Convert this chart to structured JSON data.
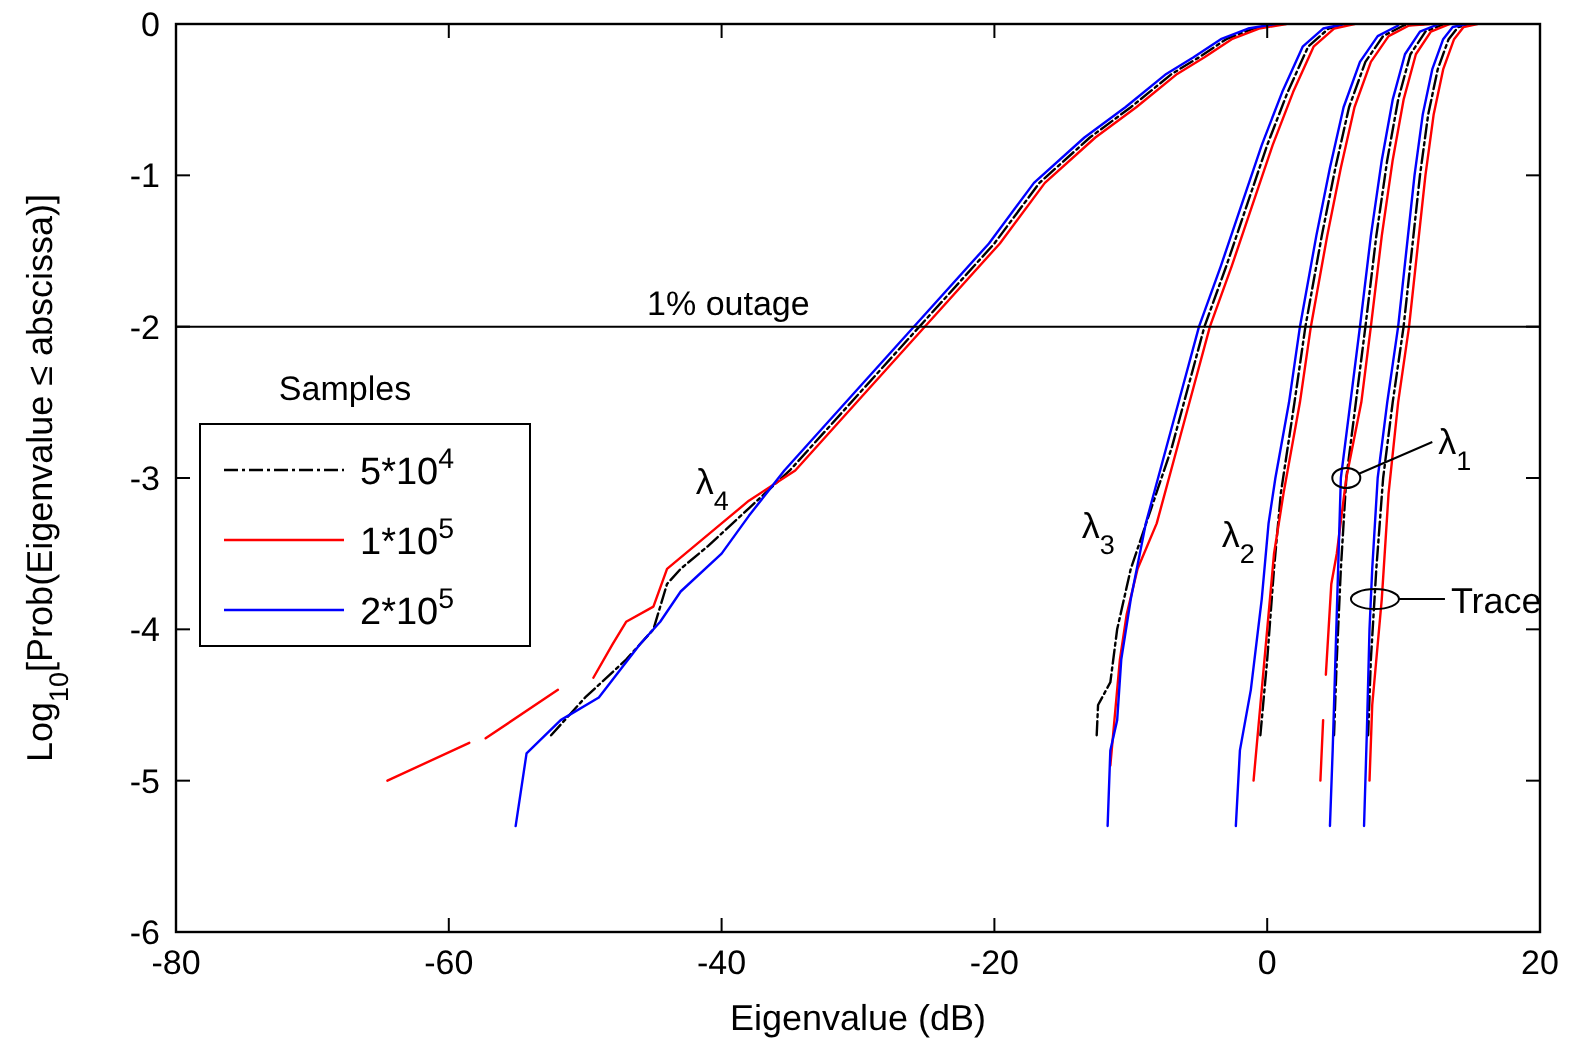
{
  "chart_data": {
    "type": "line",
    "xlabel": "Eigenvalue (dB)",
    "ylabel": "Log$_{10}$[Prob(Eigenvalue ≤ abscissa)]",
    "legend_title": "Samples",
    "legend": "left",
    "grid": false,
    "xlim": [
      -80,
      20
    ],
    "xticks": [
      -80,
      -60,
      -40,
      -20,
      0,
      20
    ],
    "ylim": [
      -6,
      0
    ],
    "yticks": [
      -6,
      -5,
      -4,
      -3,
      -2,
      -1,
      0
    ],
    "ref_lines": [
      {
        "axis": "y",
        "value": -2,
        "label": "1% outage",
        "color": "#000000"
      }
    ],
    "annotations": [
      {
        "text": "λ$_{4}$",
        "x": -38,
        "y": -3.2
      },
      {
        "text": "λ$_{3}$",
        "x": -9.7,
        "y": -3.49
      },
      {
        "text": "λ$_{2}$",
        "x": 0.55,
        "y": -3.55
      },
      {
        "text": "λ$_{1}$",
        "x": 5.8,
        "y": -3.0
      },
      {
        "text": "Trace",
        "x": 7.9,
        "y": -3.8
      }
    ],
    "series": [
      {
        "name": "5*10$^{4}$",
        "color": "#000000",
        "line_style": "dashed",
        "x": [
          -52.5,
          -50,
          -47,
          -45,
          -44,
          -43,
          -41,
          -38,
          -35,
          -30,
          -26,
          -20,
          -16.7,
          -13,
          -10,
          -7,
          -5,
          -3,
          -1,
          1
        ],
        "values": [
          -4.7,
          -4.45,
          -4.2,
          -4.0,
          -3.7,
          -3.6,
          -3.45,
          -3.2,
          -2.95,
          -2.45,
          -2.05,
          -1.45,
          -1.05,
          -0.75,
          -0.55,
          -0.33,
          -0.22,
          -0.1,
          -0.03,
          0
        ]
      },
      {
        "color": "#000000",
        "line_style": "dashed",
        "x": [
          -12.5,
          -12.4,
          -11.5,
          -11,
          -10,
          -8.5,
          -7,
          -5.8,
          -4.6,
          -3,
          -1.5,
          0,
          1.5,
          3,
          4.5,
          6
        ],
        "values": [
          -4.7,
          -4.5,
          -4.35,
          -4.0,
          -3.6,
          -3.2,
          -2.8,
          -2.4,
          -2.0,
          -1.6,
          -1.2,
          -0.8,
          -0.45,
          -0.15,
          -0.03,
          0
        ]
      },
      {
        "color": "#000000",
        "line_style": "dashed",
        "x": [
          -0.5,
          0,
          0.5,
          1,
          2,
          2.8,
          4,
          5,
          6,
          7.2,
          8.5,
          10,
          11.5
        ],
        "values": [
          -4.7,
          -4.2,
          -3.6,
          -3.1,
          -2.5,
          -2.0,
          -1.4,
          -0.95,
          -0.55,
          -0.25,
          -0.08,
          -0.01,
          0
        ]
      },
      {
        "color": "#000000",
        "line_style": "dashed",
        "x": [
          4.9,
          5.1,
          5.4,
          5.8,
          6.5,
          7.2,
          8,
          8.8,
          9.6,
          10.5,
          11.6,
          13
        ],
        "values": [
          -4.7,
          -4.2,
          -3.6,
          -3.0,
          -2.5,
          -2.0,
          -1.4,
          -0.9,
          -0.5,
          -0.2,
          -0.05,
          0
        ]
      },
      {
        "color": "#000000",
        "line_style": "dashed",
        "x": [
          7.4,
          7.6,
          8,
          8.5,
          9.2,
          10,
          10.6,
          11.2,
          11.8,
          12.5,
          13.3,
          14,
          15
        ],
        "values": [
          -4.7,
          -4.2,
          -3.6,
          -3.0,
          -2.5,
          -2.0,
          -1.5,
          -1.0,
          -0.6,
          -0.3,
          -0.1,
          -0.02,
          0
        ]
      },
      {
        "name": "1*10$^{5}$",
        "color": "#ff0000",
        "line_style": "solid",
        "x": [
          -49.4,
          -48,
          -47,
          -45,
          -44,
          -42,
          -40,
          -38,
          -34.6,
          -29.6,
          -25.6,
          -19.6,
          -16.3,
          -12.6,
          -9.6,
          -6.6,
          -4.6,
          -2.6,
          -0.6,
          1.4
        ],
        "values": [
          -4.32,
          -4.1,
          -3.95,
          -3.85,
          -3.6,
          -3.45,
          -3.3,
          -3.15,
          -2.95,
          -2.45,
          -2.05,
          -1.45,
          -1.05,
          -0.75,
          -0.55,
          -0.33,
          -0.22,
          -0.1,
          -0.03,
          0
        ]
      },
      {
        "color": "#ff0000",
        "line_style": "solid",
        "x": [
          -64.5,
          -58.5
        ],
        "values": [
          -5.0,
          -4.75
        ]
      },
      {
        "color": "#ff0000",
        "line_style": "solid",
        "x": [
          -57.3,
          -52
        ],
        "values": [
          -4.72,
          -4.4
        ]
      },
      {
        "color": "#ff0000",
        "line_style": "solid",
        "x": [
          -11.5,
          -11.2,
          -10.8,
          -10.3,
          -9.5,
          -8.1,
          -6.6,
          -5.4,
          -4.2,
          -2.6,
          -1.1,
          0.4,
          1.9,
          3.4,
          4.9,
          6.4
        ],
        "values": [
          -4.9,
          -4.6,
          -4.2,
          -3.9,
          -3.6,
          -3.3,
          -2.8,
          -2.4,
          -2.0,
          -1.6,
          -1.2,
          -0.8,
          -0.45,
          -0.15,
          -0.03,
          0
        ]
      },
      {
        "color": "#ff0000",
        "line_style": "solid",
        "x": [
          -1,
          -0.5,
          0,
          0.5,
          1.2,
          2.4,
          3.2,
          4.4,
          5.4,
          6.4,
          7.6,
          8.9,
          10.4,
          11.9
        ],
        "values": [
          -5.0,
          -4.5,
          -4.0,
          -3.5,
          -3.1,
          -2.5,
          -2.0,
          -1.4,
          -0.95,
          -0.55,
          -0.25,
          -0.08,
          -0.01,
          0
        ]
      },
      {
        "color": "#ff0000",
        "line_style": "solid",
        "x": [
          3.9,
          4.1
        ],
        "values": [
          -5.0,
          -4.6
        ]
      },
      {
        "color": "#ff0000",
        "line_style": "solid",
        "x": [
          4.3,
          4.5,
          4.7,
          5.1,
          5.8,
          6.9,
          7.6,
          8.4,
          9.2,
          10,
          10.9,
          12,
          13.4
        ],
        "values": [
          -4.3,
          -4.0,
          -3.7,
          -3.5,
          -3.0,
          -2.5,
          -2.0,
          -1.4,
          -0.9,
          -0.5,
          -0.2,
          -0.05,
          0
        ]
      },
      {
        "color": "#ff0000",
        "line_style": "solid",
        "x": [
          7.5,
          7.7,
          8.4,
          8.9,
          9.6,
          10.4,
          11,
          11.6,
          12.2,
          12.9,
          13.7,
          14.4,
          15.4
        ],
        "values": [
          -5.0,
          -4.5,
          -3.8,
          -3.1,
          -2.5,
          -2.0,
          -1.5,
          -1.0,
          -0.6,
          -0.3,
          -0.1,
          -0.02,
          0
        ]
      },
      {
        "name": "2*10$^{5}$",
        "color": "#0000ff",
        "line_style": "solid",
        "x": [
          -55.1,
          -54.3,
          -51.8,
          -49,
          -46,
          -44.5,
          -43,
          -40,
          -38,
          -35.4,
          -30.4,
          -26.4,
          -20.4,
          -17.1,
          -13.4,
          -10.4,
          -7.4,
          -5.4,
          -3.4,
          -1.4,
          0.6
        ],
        "values": [
          -5.3,
          -4.82,
          -4.6,
          -4.45,
          -4.1,
          -3.95,
          -3.75,
          -3.5,
          -3.25,
          -2.95,
          -2.45,
          -2.05,
          -1.45,
          -1.05,
          -0.75,
          -0.55,
          -0.33,
          -0.22,
          -0.1,
          -0.03,
          0
        ]
      },
      {
        "color": "#0000ff",
        "line_style": "solid",
        "x": [
          -11.7,
          -11.5,
          -11,
          -10.7,
          -10,
          -8.9,
          -7.4,
          -6.2,
          -5,
          -3.4,
          -1.9,
          -0.4,
          1.1,
          2.6,
          4.1,
          5.6
        ],
        "values": [
          -5.3,
          -4.8,
          -4.6,
          -4.2,
          -3.8,
          -3.3,
          -2.8,
          -2.4,
          -2.0,
          -1.6,
          -1.2,
          -0.8,
          -0.45,
          -0.15,
          -0.03,
          0
        ]
      },
      {
        "color": "#0000ff",
        "line_style": "solid",
        "x": [
          -2.3,
          -2,
          -1.2,
          -0.4,
          0.1,
          0.6,
          1.6,
          2.4,
          3.6,
          4.6,
          5.6,
          6.8,
          8.1,
          9.6
        ],
        "values": [
          -5.3,
          -4.8,
          -4.4,
          -3.8,
          -3.3,
          -3.0,
          -2.5,
          -2.0,
          -1.4,
          -0.95,
          -0.55,
          -0.25,
          -0.08,
          -0.01
        ]
      },
      {
        "color": "#0000ff",
        "line_style": "solid",
        "x": [
          4.6,
          4.8,
          5.0,
          5.2,
          5.4,
          6.1,
          6.8,
          7.6,
          8.4,
          9.2,
          10.1,
          11.2,
          12.6
        ],
        "values": [
          -5.3,
          -4.8,
          -4.2,
          -3.6,
          -3.0,
          -2.5,
          -2.0,
          -1.4,
          -0.9,
          -0.5,
          -0.2,
          -0.05,
          0
        ]
      },
      {
        "color": "#0000ff",
        "line_style": "solid",
        "x": [
          7.1,
          7.3,
          7.5,
          7.7,
          8.1,
          8.8,
          9.6,
          10.2,
          10.8,
          11.4,
          12.1,
          12.9,
          13.6,
          14.6
        ],
        "values": [
          -5.3,
          -4.7,
          -4.0,
          -3.6,
          -3.0,
          -2.5,
          -2.0,
          -1.5,
          -1.0,
          -0.6,
          -0.3,
          -0.1,
          -0.02,
          0
        ]
      }
    ]
  }
}
